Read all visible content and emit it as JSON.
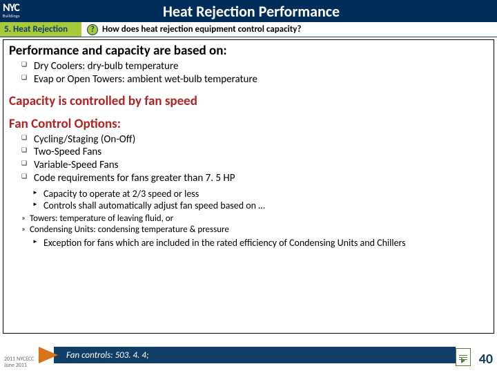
{
  "header": {
    "logo_main": "NYC",
    "logo_sub": "Buildings",
    "title": "Heat Rejection Performance"
  },
  "subheader": {
    "section": "5. Heat Rejection",
    "question_glyph": "?",
    "question": "How does heat rejection equipment control capacity?"
  },
  "body": {
    "heading1": "Performance and capacity are based on:",
    "basis": [
      "Dry Coolers: dry-bulb temperature",
      "Evap or Open Towers: ambient wet-bulb temperature"
    ],
    "heading2a": "Capacity is controlled by fan speed",
    "heading2b": "Fan Control Options:",
    "options": [
      "Cycling/Staging (On-Off)",
      "Two-Speed Fans",
      "Variable-Speed Fans",
      "Code requirements for fans greater than 7. 5 HP"
    ],
    "sub_options": [
      "Capacity to operate at 2/3 speed or less",
      "Controls shall automatically adjust fan speed based on …"
    ],
    "sub_sub": [
      "Towers: temperature of leaving fluid, or",
      "Condensing Units: condensing temperature & pressure"
    ],
    "exception": "Exception for fans which are included in the rated efficiency of Condensing Units and Chillers"
  },
  "footer": {
    "left1": "2011 NYCECC",
    "left2": "June 2011",
    "reference": "Fan controls: 503. 4. 4;",
    "page": "40"
  },
  "colors": {
    "title_bg": "#002d5a",
    "accent_green": "#a7c93b",
    "red": "#b22222",
    "ref_bar": "#113e66",
    "arrow": "#d8731a"
  }
}
